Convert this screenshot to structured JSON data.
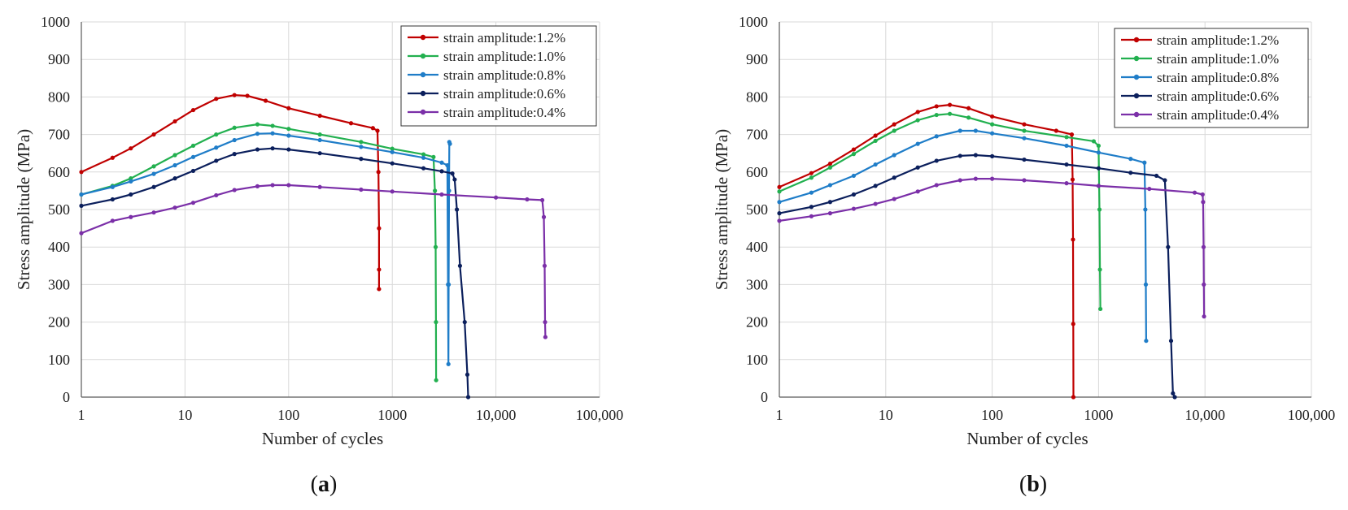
{
  "chart_data": [
    {
      "type": "line",
      "panel_label": "a",
      "xlabel": "Number of cycles",
      "ylabel": "Stress amplitude (MPa)",
      "xscale": "log",
      "xlim": [
        1,
        100000
      ],
      "ylim": [
        0,
        1000
      ],
      "x_tick_labels": [
        "1",
        "10",
        "100",
        "1000",
        "10,000",
        "100,000"
      ],
      "y_tick_labels": [
        "0",
        "100",
        "200",
        "300",
        "400",
        "500",
        "600",
        "700",
        "800",
        "900",
        "1000"
      ],
      "grid": true,
      "legend_position": "top-right",
      "series": [
        {
          "name": "strain amplitude:1.2%",
          "color": "#c00000",
          "x": [
            1,
            2,
            3,
            5,
            8,
            12,
            20,
            30,
            40,
            60,
            100,
            200,
            400,
            650,
            720,
            735,
            745,
            745,
            745
          ],
          "y": [
            600,
            638,
            663,
            700,
            735,
            765,
            795,
            805,
            803,
            790,
            770,
            750,
            730,
            717,
            710,
            600,
            450,
            340,
            288
          ]
        },
        {
          "name": "strain amplitude:1.0%",
          "color": "#22b04f",
          "x": [
            1,
            2,
            3,
            5,
            8,
            12,
            20,
            30,
            50,
            70,
            100,
            200,
            500,
            1000,
            2000,
            2500,
            2580,
            2620,
            2640,
            2650
          ],
          "y": [
            540,
            563,
            583,
            615,
            645,
            670,
            700,
            718,
            727,
            723,
            715,
            700,
            680,
            662,
            647,
            640,
            550,
            400,
            200,
            45
          ]
        },
        {
          "name": "strain amplitude:0.8%",
          "color": "#1f7dc8",
          "x": [
            1,
            2,
            3,
            5,
            8,
            12,
            20,
            30,
            50,
            70,
            100,
            200,
            500,
            1000,
            2000,
            3000,
            3400,
            3450,
            3480,
            3500,
            3530,
            3550,
            3600
          ],
          "y": [
            540,
            560,
            575,
            595,
            618,
            640,
            665,
            685,
            702,
            703,
            697,
            685,
            667,
            653,
            638,
            625,
            618,
            300,
            88,
            300,
            550,
            680,
            675
          ]
        },
        {
          "name": "strain amplitude:0.6%",
          "color": "#0b1f5c",
          "x": [
            1,
            2,
            3,
            5,
            8,
            12,
            20,
            30,
            50,
            70,
            100,
            200,
            500,
            1000,
            2000,
            3000,
            3800,
            4000,
            4200,
            4500,
            5000,
            5300,
            5400
          ],
          "y": [
            510,
            527,
            540,
            560,
            583,
            603,
            630,
            648,
            660,
            663,
            660,
            650,
            635,
            623,
            610,
            602,
            596,
            580,
            500,
            350,
            200,
            60,
            0
          ]
        },
        {
          "name": "strain amplitude:0.4%",
          "color": "#7b2fa8",
          "x": [
            1,
            2,
            3,
            5,
            8,
            12,
            20,
            30,
            50,
            70,
            100,
            200,
            500,
            1000,
            3000,
            10000,
            20000,
            28000,
            29000,
            29500,
            29800,
            30000
          ],
          "y": [
            437,
            470,
            480,
            492,
            505,
            518,
            538,
            552,
            562,
            565,
            565,
            560,
            553,
            548,
            540,
            532,
            527,
            525,
            480,
            350,
            200,
            160
          ]
        }
      ],
      "legend": [
        "strain amplitude:1.2%",
        "strain amplitude:1.0%",
        "strain amplitude:0.8%",
        "strain amplitude:0.6%",
        "strain amplitude:0.4%"
      ]
    },
    {
      "type": "line",
      "panel_label": "b",
      "xlabel": "Number of cycles",
      "ylabel": "Stress amplitude (MPa)",
      "xscale": "log",
      "xlim": [
        1,
        100000
      ],
      "ylim": [
        0,
        1000
      ],
      "x_tick_labels": [
        "1",
        "10",
        "100",
        "1000",
        "10,000",
        "100,000"
      ],
      "y_tick_labels": [
        "0",
        "100",
        "200",
        "300",
        "400",
        "500",
        "600",
        "700",
        "800",
        "900",
        "1000"
      ],
      "grid": true,
      "legend_position": "top-right",
      "series": [
        {
          "name": "strain amplitude:1.2%",
          "color": "#c00000",
          "x": [
            1,
            2,
            3,
            5,
            8,
            12,
            20,
            30,
            40,
            60,
            100,
            200,
            400,
            560,
            570,
            575,
            578,
            580
          ],
          "y": [
            560,
            597,
            622,
            660,
            697,
            727,
            760,
            775,
            779,
            770,
            748,
            727,
            710,
            700,
            580,
            420,
            195,
            0
          ]
        },
        {
          "name": "strain amplitude:1.0%",
          "color": "#22b04f",
          "x": [
            1,
            2,
            3,
            5,
            8,
            12,
            20,
            30,
            40,
            60,
            100,
            200,
            500,
            900,
            1000,
            1020,
            1030,
            1040
          ],
          "y": [
            548,
            585,
            612,
            648,
            683,
            710,
            738,
            752,
            755,
            745,
            727,
            710,
            693,
            682,
            670,
            500,
            340,
            235
          ]
        },
        {
          "name": "strain amplitude:0.8%",
          "color": "#1f7dc8",
          "x": [
            1,
            2,
            3,
            5,
            8,
            12,
            20,
            30,
            50,
            70,
            100,
            200,
            500,
            1000,
            2000,
            2700,
            2750,
            2780,
            2800
          ],
          "y": [
            520,
            545,
            565,
            590,
            620,
            645,
            675,
            695,
            710,
            710,
            703,
            690,
            670,
            652,
            635,
            625,
            500,
            300,
            150
          ]
        },
        {
          "name": "strain amplitude:0.6%",
          "color": "#0b1f5c",
          "x": [
            1,
            2,
            3,
            5,
            8,
            12,
            20,
            30,
            50,
            70,
            100,
            200,
            500,
            1000,
            2000,
            3500,
            4200,
            4500,
            4800,
            5000,
            5200
          ],
          "y": [
            490,
            507,
            520,
            540,
            563,
            585,
            612,
            630,
            643,
            645,
            642,
            633,
            620,
            610,
            598,
            590,
            578,
            400,
            150,
            10,
            0
          ]
        },
        {
          "name": "strain amplitude:0.4%",
          "color": "#7b2fa8",
          "x": [
            1,
            2,
            3,
            5,
            8,
            12,
            20,
            30,
            50,
            70,
            100,
            200,
            500,
            1000,
            3000,
            8000,
            9500,
            9600,
            9700,
            9750,
            9800
          ],
          "y": [
            470,
            482,
            490,
            502,
            515,
            528,
            548,
            565,
            578,
            582,
            582,
            578,
            570,
            563,
            555,
            545,
            540,
            520,
            400,
            300,
            215
          ]
        }
      ],
      "legend": [
        "strain amplitude:1.2%",
        "strain amplitude:1.0%",
        "strain amplitude:0.8%",
        "strain amplitude:0.6%",
        "strain amplitude:0.4%"
      ]
    }
  ]
}
